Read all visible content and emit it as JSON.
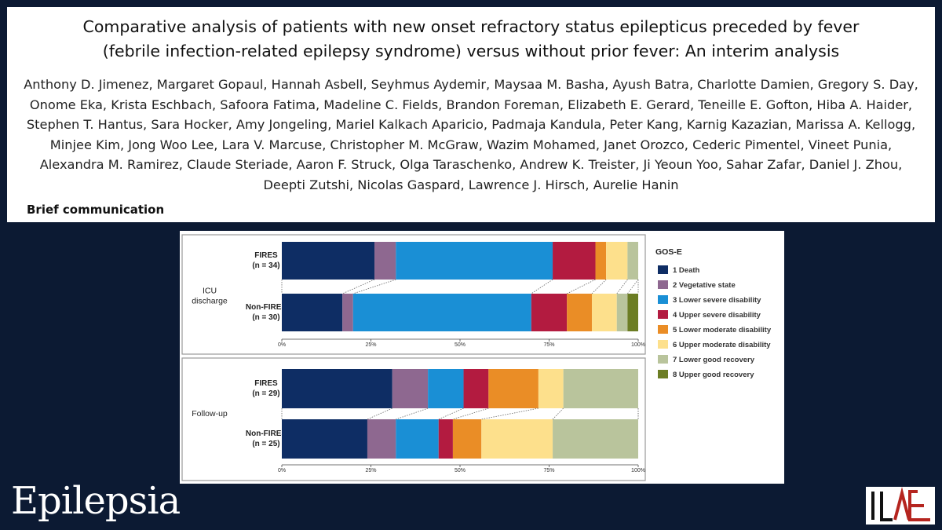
{
  "header": {
    "title": "Comparative analysis of patients with new onset refractory status epilepticus preceded by fever (febrile infection-related epilepsy syndrome) versus without prior fever: An interim analysis",
    "authors": "Anthony D. Jimenez, Margaret Gopaul, Hannah Asbell, Seyhmus Aydemir, Maysaa M. Basha, Ayush Batra, Charlotte Damien, Gregory S. Day, Onome Eka, Krista Eschbach, Safoora Fatima, Madeline C. Fields, Brandon Foreman, Elizabeth E. Gerard, Teneille E. Gofton, Hiba A. Haider, Stephen T. Hantus, Sara Hocker, Amy Jongeling, Mariel Kalkach Aparicio, Padmaja Kandula, Peter Kang, Karnig Kazazian, Marissa A. Kellogg, Minjee Kim, Jong Woo Lee, Lara V. Marcuse, Christopher M. McGraw, Wazim Mohamed, Janet Orozco, Cederic Pimentel, Vineet Punia, Alexandra M. Ramirez, Claude Steriade, Aaron F. Struck, Olga Taraschenko, Andrew K. Treister, Ji Yeoun Yoo, Sahar Zafar, Daniel J. Zhou, Deepti Zutshi, Nicolas Gaspard, Lawrence J. Hirsch, Aurelie Hanin",
    "article_type": "Brief communication"
  },
  "footer": {
    "journal": "Epilepsia",
    "society_logo": "ILAE"
  },
  "chart_data": {
    "type": "bar",
    "orientation": "horizontal-stacked-100",
    "legend": {
      "title": "GOS-E",
      "items": [
        {
          "label": "1 Death",
          "color": "#0e2d64"
        },
        {
          "label": "2 Vegetative state",
          "color": "#8e6890"
        },
        {
          "label": "3 Lower severe disability",
          "color": "#1a8fd5"
        },
        {
          "label": "4 Upper severe disability",
          "color": "#b31b40"
        },
        {
          "label": "5 Lower moderate disability",
          "color": "#ea8d26"
        },
        {
          "label": "6 Upper moderate disability",
          "color": "#fde08c"
        },
        {
          "label": "7 Lower good recovery",
          "color": "#b9c49c"
        },
        {
          "label": "8 Upper good recovery",
          "color": "#6c7d24"
        }
      ]
    },
    "xticks": [
      "0%",
      "25%",
      "50%",
      "75%",
      "100%"
    ],
    "panels": [
      {
        "label_lines": [
          "ICU",
          "discharge"
        ],
        "groups": [
          {
            "name": "FIRES",
            "n": "(n = 34)",
            "values": [
              26,
              6,
              44,
              12,
              3,
              6,
              3,
              0
            ]
          },
          {
            "name": "Non-FIRES",
            "n": "(n = 30)",
            "values": [
              17,
              3,
              50,
              10,
              7,
              7,
              3,
              3
            ]
          }
        ]
      },
      {
        "label_lines": [
          "Follow-up"
        ],
        "groups": [
          {
            "name": "FIRES",
            "n": "(n = 29)",
            "values": [
              31,
              10,
              10,
              7,
              14,
              7,
              21,
              0
            ]
          },
          {
            "name": "Non-FIRES",
            "n": "(n = 25)",
            "values": [
              24,
              8,
              12,
              4,
              8,
              20,
              24,
              0
            ]
          }
        ]
      }
    ]
  }
}
